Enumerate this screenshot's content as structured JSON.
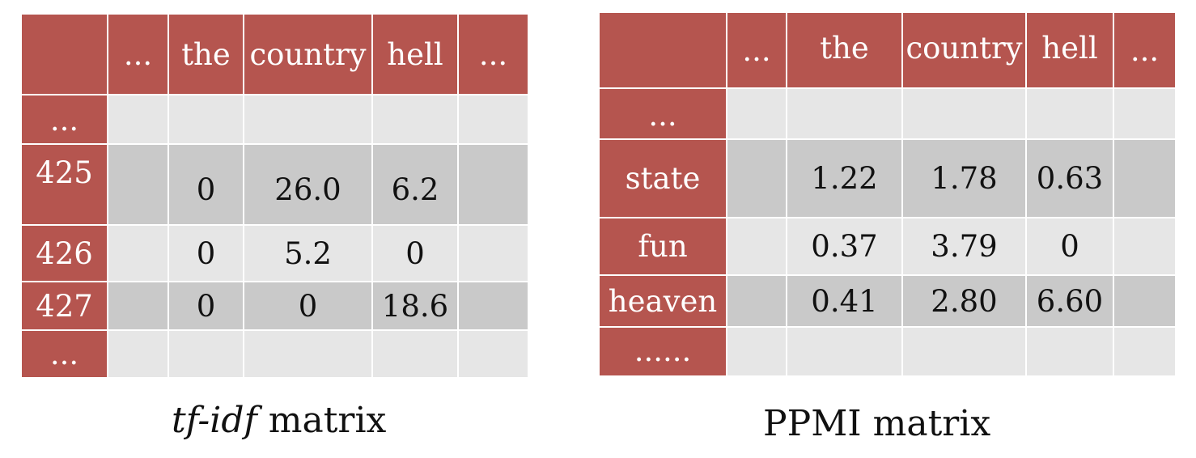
{
  "tfidf": {
    "columns": [
      "...",
      "the",
      "country",
      "hell",
      "..."
    ],
    "rows": [
      {
        "label": "...",
        "values": [
          "",
          "",
          "",
          "",
          ""
        ]
      },
      {
        "label": "425",
        "values": [
          "",
          "0",
          "26.0",
          "6.2",
          ""
        ]
      },
      {
        "label": "426",
        "values": [
          "",
          "0",
          "5.2",
          "0",
          ""
        ]
      },
      {
        "label": "427",
        "values": [
          "",
          "0",
          "0",
          "18.6",
          ""
        ]
      },
      {
        "label": "...",
        "values": [
          "",
          "",
          "",
          "",
          ""
        ]
      }
    ],
    "caption_italic": "tf-idf",
    "caption_rest": " matrix"
  },
  "ppmi": {
    "columns": [
      "...",
      "the",
      "country",
      "hell",
      "..."
    ],
    "rows": [
      {
        "label": "...",
        "values": [
          "",
          "",
          "",
          "",
          ""
        ]
      },
      {
        "label": "state",
        "values": [
          "",
          "1.22",
          "1.78",
          "0.63",
          ""
        ]
      },
      {
        "label": "fun",
        "values": [
          "",
          "0.37",
          "3.79",
          "0",
          ""
        ]
      },
      {
        "label": "heaven",
        "values": [
          "",
          "0.41",
          "2.80",
          "6.60",
          ""
        ]
      },
      {
        "label": "......",
        "values": [
          "",
          "",
          "",
          "",
          ""
        ]
      }
    ],
    "caption": "PPMI matrix"
  },
  "colors": {
    "header": "#b5554f",
    "cell_light": "#e6e6e6",
    "cell_dark": "#c9c9c9",
    "grid": "#ffffff"
  }
}
